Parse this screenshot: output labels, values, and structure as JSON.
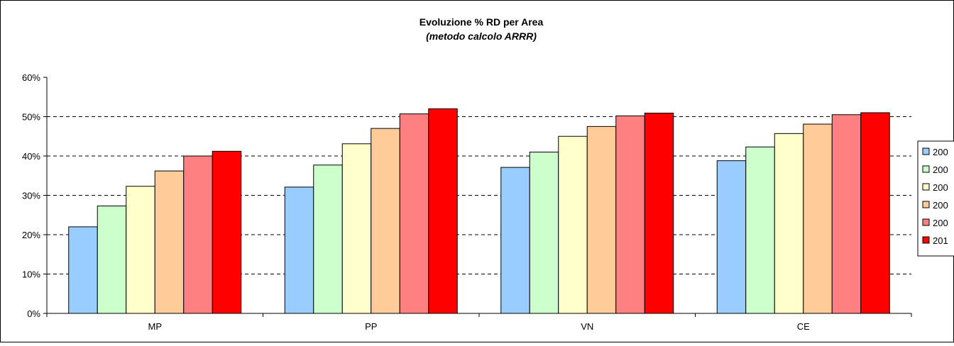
{
  "chart_data": {
    "type": "bar",
    "title": "Evoluzione % RD per Area",
    "subtitle": "(metodo calcolo ARRR)",
    "categories": [
      "MP",
      "PP",
      "VN",
      "CE"
    ],
    "y_ticks": [
      "0%",
      "10%",
      "20%",
      "30%",
      "40%",
      "50%",
      "60%"
    ],
    "ylim": [
      0,
      60
    ],
    "grid": "horizontal dashed at 10% steps",
    "legend_position": "right",
    "series": [
      {
        "name": "200",
        "color": "#99ccff",
        "values": [
          22.0,
          32.1,
          37.1,
          38.8
        ]
      },
      {
        "name": "200",
        "color": "#ccffcc",
        "values": [
          27.3,
          37.7,
          41.0,
          42.3
        ]
      },
      {
        "name": "200",
        "color": "#ffffcc",
        "values": [
          32.3,
          43.1,
          45.0,
          45.7
        ]
      },
      {
        "name": "200",
        "color": "#ffcc99",
        "values": [
          36.2,
          47.0,
          47.5,
          48.1
        ]
      },
      {
        "name": "200",
        "color": "#ff8080",
        "values": [
          40.0,
          50.7,
          50.2,
          50.5
        ]
      },
      {
        "name": "201",
        "color": "#ff0000",
        "values": [
          41.2,
          52.0,
          50.9,
          51.0
        ]
      }
    ]
  }
}
